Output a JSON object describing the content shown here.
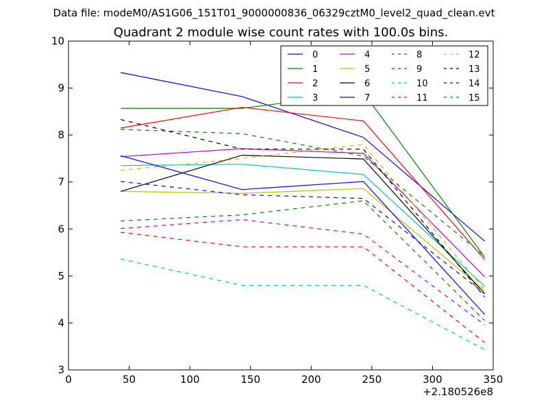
{
  "header": {
    "data_file": "Data file: modeM0/AS1G06_151T01_9000000836_06329cztM0_level2_quad_clean.evt"
  },
  "chart_data": {
    "type": "line",
    "title": "Quadrant 2 module wise count rates with 100.0s bins.",
    "xlabel": "",
    "ylabel": "",
    "x_offset_label": "+2.180526e8",
    "xlim": [
      0,
      350
    ],
    "ylim": [
      3,
      10
    ],
    "x_ticks": [
      0,
      50,
      100,
      150,
      200,
      250,
      300,
      350
    ],
    "y_ticks": [
      3,
      4,
      5,
      6,
      7,
      8,
      9,
      10
    ],
    "x": [
      43,
      143,
      243,
      343
    ],
    "legend_position": "top-right",
    "series": [
      {
        "name": "0",
        "values": [
          9.33,
          8.82,
          7.95,
          5.74
        ],
        "color": "#0000ff",
        "dash": "solid"
      },
      {
        "name": "1",
        "values": [
          8.57,
          8.57,
          8.9,
          5.4
        ],
        "color": "#008000",
        "dash": "solid"
      },
      {
        "name": "2",
        "values": [
          8.15,
          8.59,
          8.3,
          5.35
        ],
        "color": "#ff0000",
        "dash": "solid"
      },
      {
        "name": "3",
        "values": [
          7.35,
          7.38,
          7.16,
          4.78
        ],
        "color": "#00bfbf",
        "dash": "solid"
      },
      {
        "name": "4",
        "values": [
          7.54,
          7.71,
          7.61,
          4.98
        ],
        "color": "#bf00bf",
        "dash": "solid"
      },
      {
        "name": "5",
        "values": [
          6.8,
          6.76,
          6.86,
          4.68
        ],
        "color": "#bfbf00",
        "dash": "solid"
      },
      {
        "name": "6",
        "values": [
          6.8,
          7.57,
          7.49,
          4.62
        ],
        "color": "#000000",
        "dash": "solid"
      },
      {
        "name": "7",
        "values": [
          7.56,
          6.84,
          7.01,
          4.18
        ],
        "color": "#0000ff",
        "dash": "solid"
      },
      {
        "name": "8",
        "values": [
          8.12,
          8.03,
          7.55,
          5.42
        ],
        "color": "#008000",
        "dash": "dashed"
      },
      {
        "name": "9",
        "values": [
          5.93,
          5.62,
          5.62,
          3.58
        ],
        "color": "#ff0000",
        "dash": "dashed"
      },
      {
        "name": "10",
        "values": [
          5.36,
          4.8,
          4.8,
          3.43
        ],
        "color": "#00bfbf",
        "dash": "dashed"
      },
      {
        "name": "11",
        "values": [
          6.01,
          6.2,
          5.89,
          3.96
        ],
        "color": "#bf00bf",
        "dash": "dashed"
      },
      {
        "name": "12",
        "values": [
          7.25,
          7.5,
          7.8,
          4.7
        ],
        "color": "#bfbf00",
        "dash": "dashed"
      },
      {
        "name": "13",
        "values": [
          8.33,
          7.7,
          7.7,
          4.55
        ],
        "color": "#000000",
        "dash": "dashed"
      },
      {
        "name": "14",
        "values": [
          7.01,
          6.73,
          6.65,
          4.62
        ],
        "color": "#0000ff",
        "dash": "dashed"
      },
      {
        "name": "15",
        "values": [
          6.17,
          6.3,
          6.6,
          4.05
        ],
        "color": "#008000",
        "dash": "dashed"
      }
    ]
  }
}
